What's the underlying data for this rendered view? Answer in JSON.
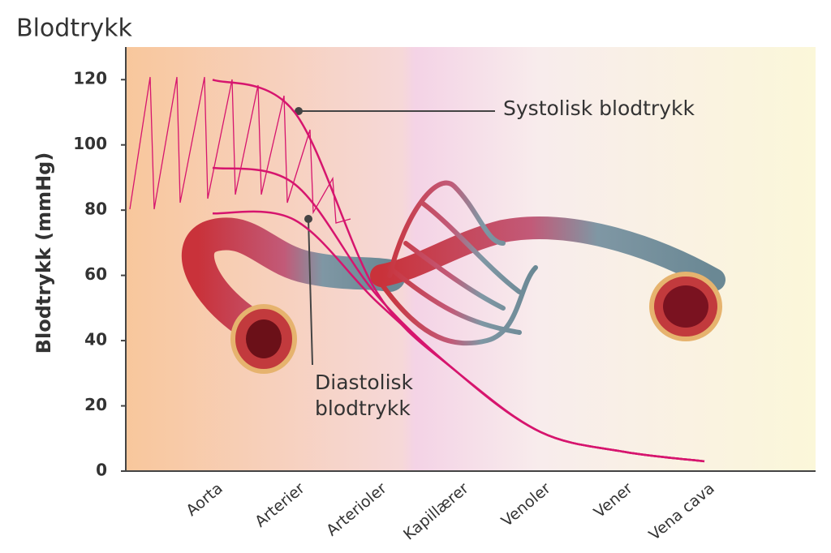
{
  "chart_data": {
    "type": "line",
    "title": "Blodtrykk",
    "y_label": "Blodtrykk (mmHg)",
    "categories": [
      "Aorta",
      "Arterier",
      "Arterioler",
      "Kapillærer",
      "Venoler",
      "Vener",
      "Vena cava"
    ],
    "series": [
      {
        "name": "Systolisk blodtrykk",
        "color": "#d6156e",
        "values": [
          120,
          110,
          55,
          30,
          12,
          6,
          3
        ]
      },
      {
        "color": "#d6156e",
        "values": [
          93,
          88,
          54,
          30,
          12,
          6,
          3
        ]
      },
      {
        "name": "Diastolisk blodtrykk",
        "color": "#d6156e",
        "values": [
          79,
          77,
          52,
          30,
          12,
          6,
          3
        ]
      }
    ],
    "ylim": [
      0,
      130
    ],
    "yticks": [
      0,
      20,
      40,
      60,
      80,
      100,
      120
    ]
  }
}
